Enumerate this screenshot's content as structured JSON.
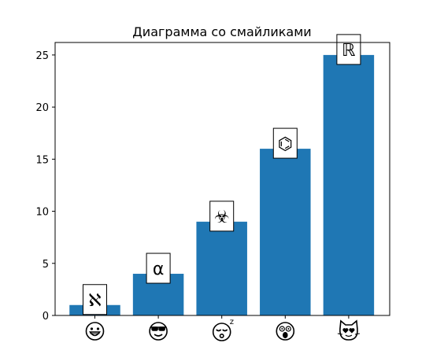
{
  "chart_data": {
    "type": "bar",
    "title": "Диаграмма со смайликами",
    "xlabel": "",
    "ylabel": "",
    "categories": [
      "smiling-face",
      "face-with-sunglasses",
      "sleeping-face",
      "dizzy-face",
      "heart-eyes-cat"
    ],
    "category_icons": [
      "grinning-face-icon",
      "sunglasses-face-icon",
      "sleeping-face-icon",
      "dizzy-face-icon",
      "heart-eyes-cat-icon"
    ],
    "values": [
      1,
      4,
      9,
      16,
      25
    ],
    "bar_labels": [
      "ℵ",
      "α",
      "☣",
      "⌬",
      "ℝ"
    ],
    "ylim": [
      0,
      26.2
    ],
    "yticks": [
      0,
      5,
      10,
      15,
      20,
      25
    ],
    "grid": false,
    "bar_color": "#1f77b4"
  }
}
